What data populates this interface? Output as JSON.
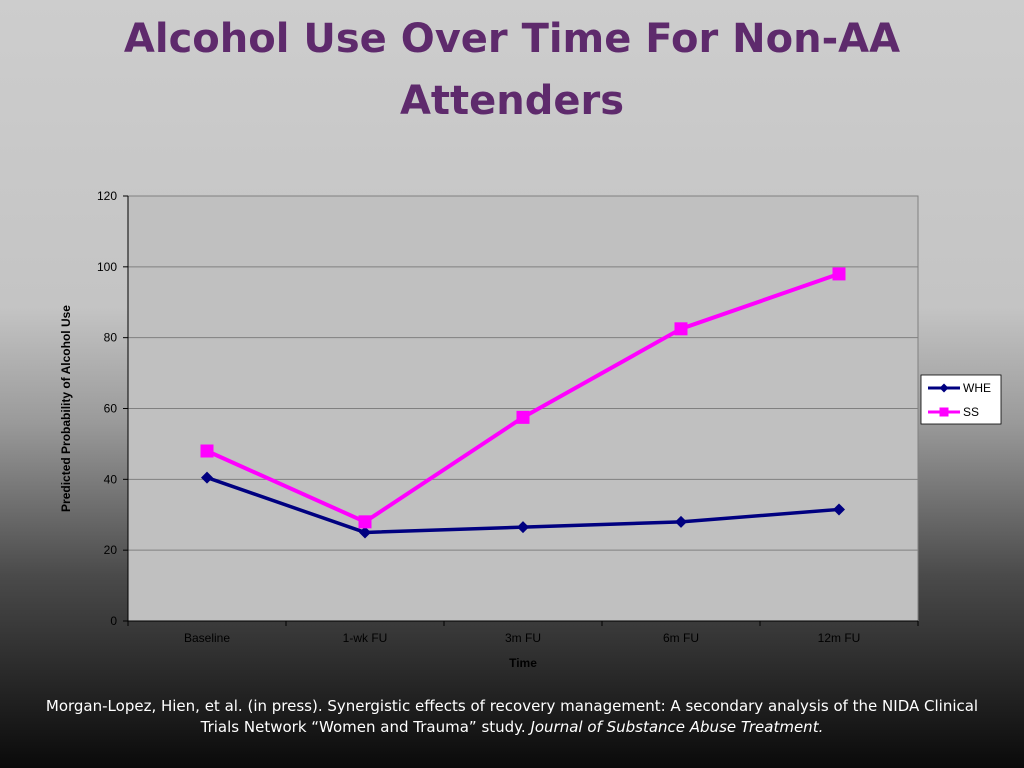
{
  "slide": {
    "title_line1": "Alcohol Use Over Time For Non-AA",
    "title_line2": "Attenders",
    "citation_plain": "Morgan-Lopez, Hien,  et  al.  (in press). Synergistic effects of recovery management: A secondary analysis of the NIDA Clinical Trials Network “Women and Trauma” study. ",
    "citation_journal": "Journal of Substance Abuse Treatment."
  },
  "colors": {
    "title": "#5e2a6c",
    "plot_bg": "#c0c0c0",
    "gridline": "#808080",
    "WHE": "#000080",
    "SS": "#ff00ff"
  },
  "chart_data": {
    "type": "line",
    "categories": [
      "Baseline",
      "1-wk FU",
      "3m FU",
      "6m FU",
      "12m FU"
    ],
    "series": [
      {
        "name": "WHE",
        "values": [
          40.5,
          25,
          26.5,
          28,
          31.5
        ],
        "marker": "diamond"
      },
      {
        "name": "SS",
        "values": [
          48,
          28,
          57.5,
          82.5,
          98
        ],
        "marker": "square"
      }
    ],
    "xlabel": "Time",
    "ylabel": "Predicted Probability of Alcohol Use",
    "ylim": [
      0,
      120
    ],
    "yticks": [
      0,
      20,
      40,
      60,
      80,
      100,
      120
    ],
    "grid": true,
    "legend": "right"
  }
}
